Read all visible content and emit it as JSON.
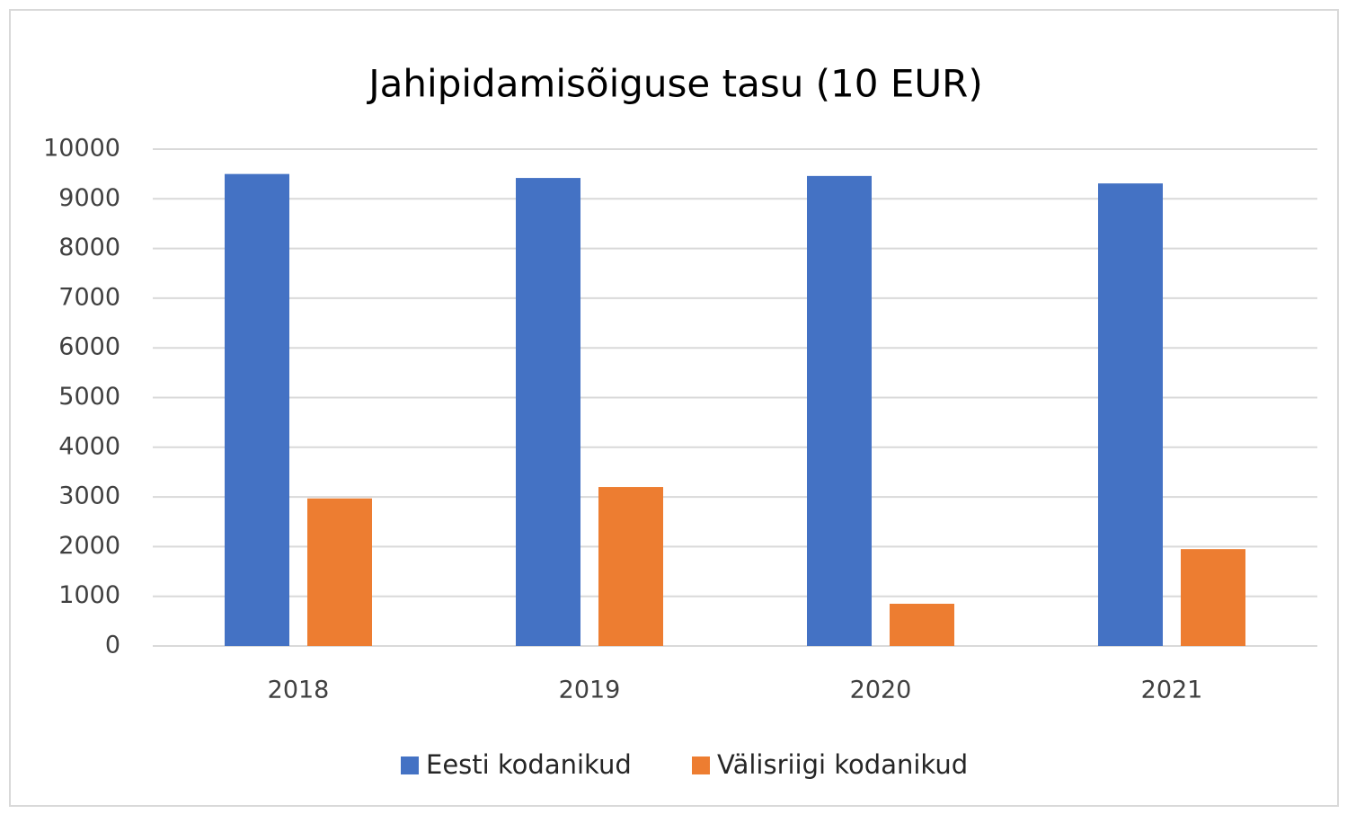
{
  "chart_data": {
    "type": "bar",
    "title": "Jahipidamisõiguse tasu (10 EUR)",
    "categories": [
      "2018",
      "2019",
      "2020",
      "2021"
    ],
    "series": [
      {
        "name": "Eesti kodanikud",
        "color": "#4472c4",
        "values": [
          9500,
          9420,
          9460,
          9310
        ]
      },
      {
        "name": "Välisriigi kodanikud",
        "color": "#ed7d31",
        "values": [
          2970,
          3200,
          850,
          1950
        ]
      }
    ],
    "ylim": [
      0,
      10000
    ],
    "yticks": [
      0,
      1000,
      2000,
      3000,
      4000,
      5000,
      6000,
      7000,
      8000,
      9000,
      10000
    ],
    "grid": true,
    "legend": "bottom"
  }
}
